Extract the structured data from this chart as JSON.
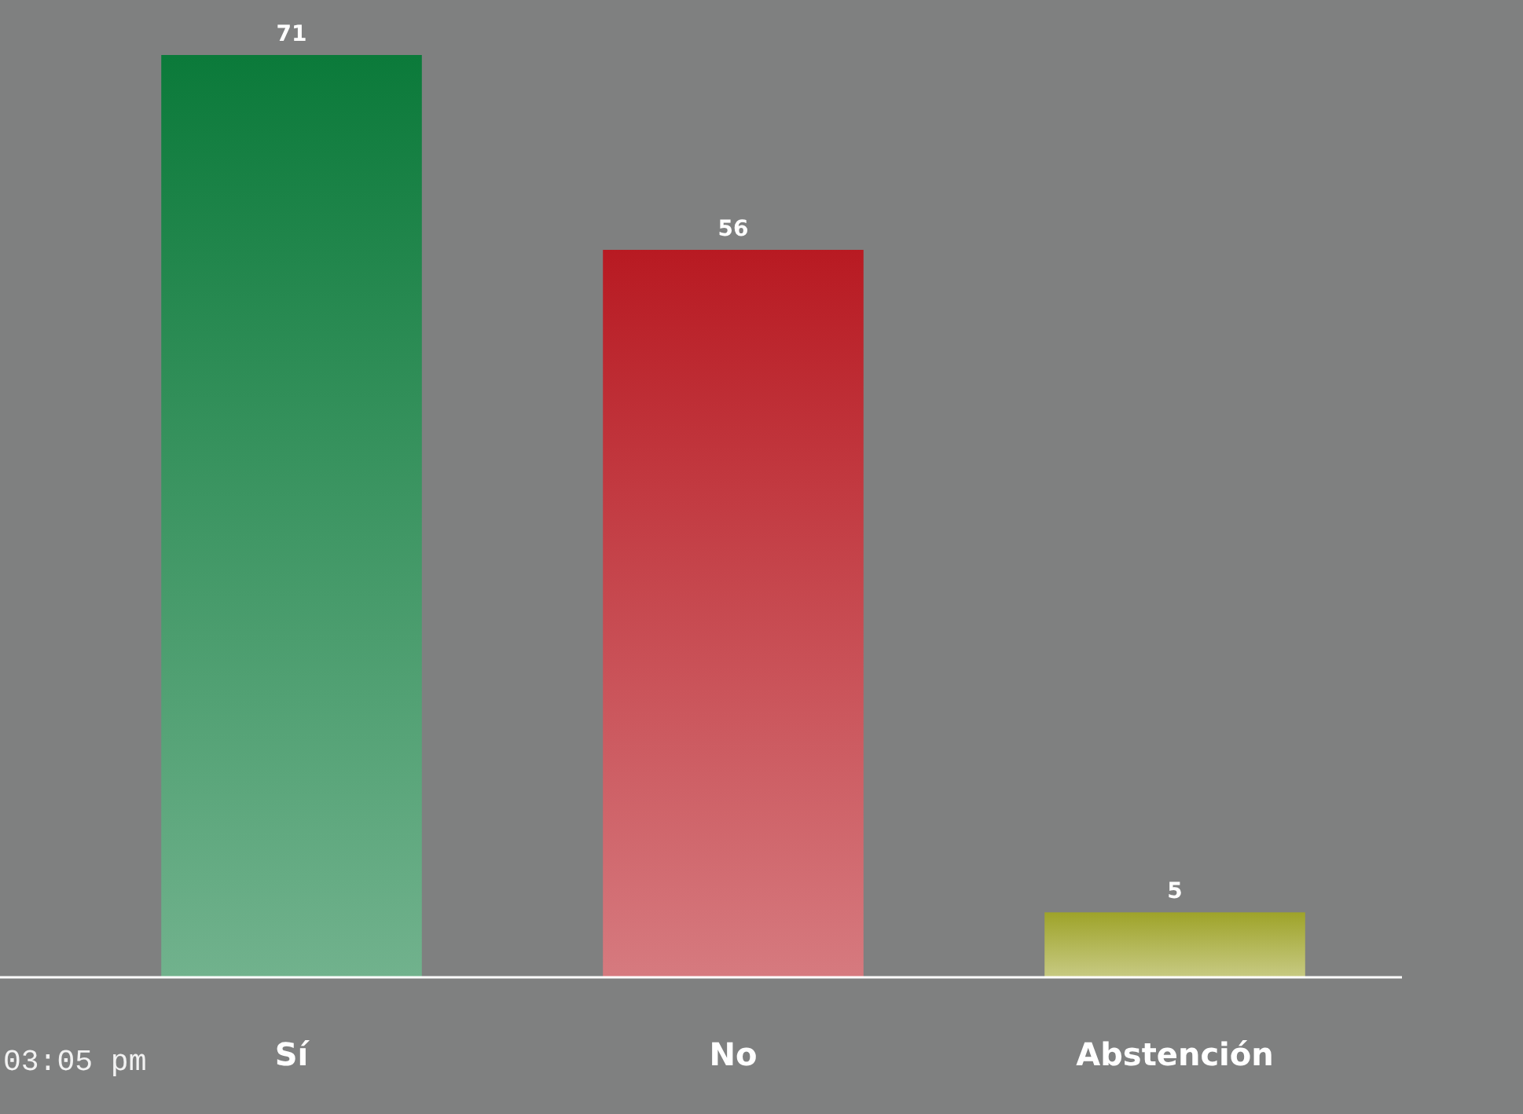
{
  "chart_data": {
    "type": "bar",
    "categories": [
      "Sí",
      "No",
      "Abstención"
    ],
    "values": [
      71,
      56,
      5
    ],
    "colors": [
      "#0b7a3a",
      "#b81a22",
      "#9ea329"
    ],
    "data_labels": true,
    "tick_labels": "x",
    "annotations": [
      "03:05 pm"
    ]
  }
}
